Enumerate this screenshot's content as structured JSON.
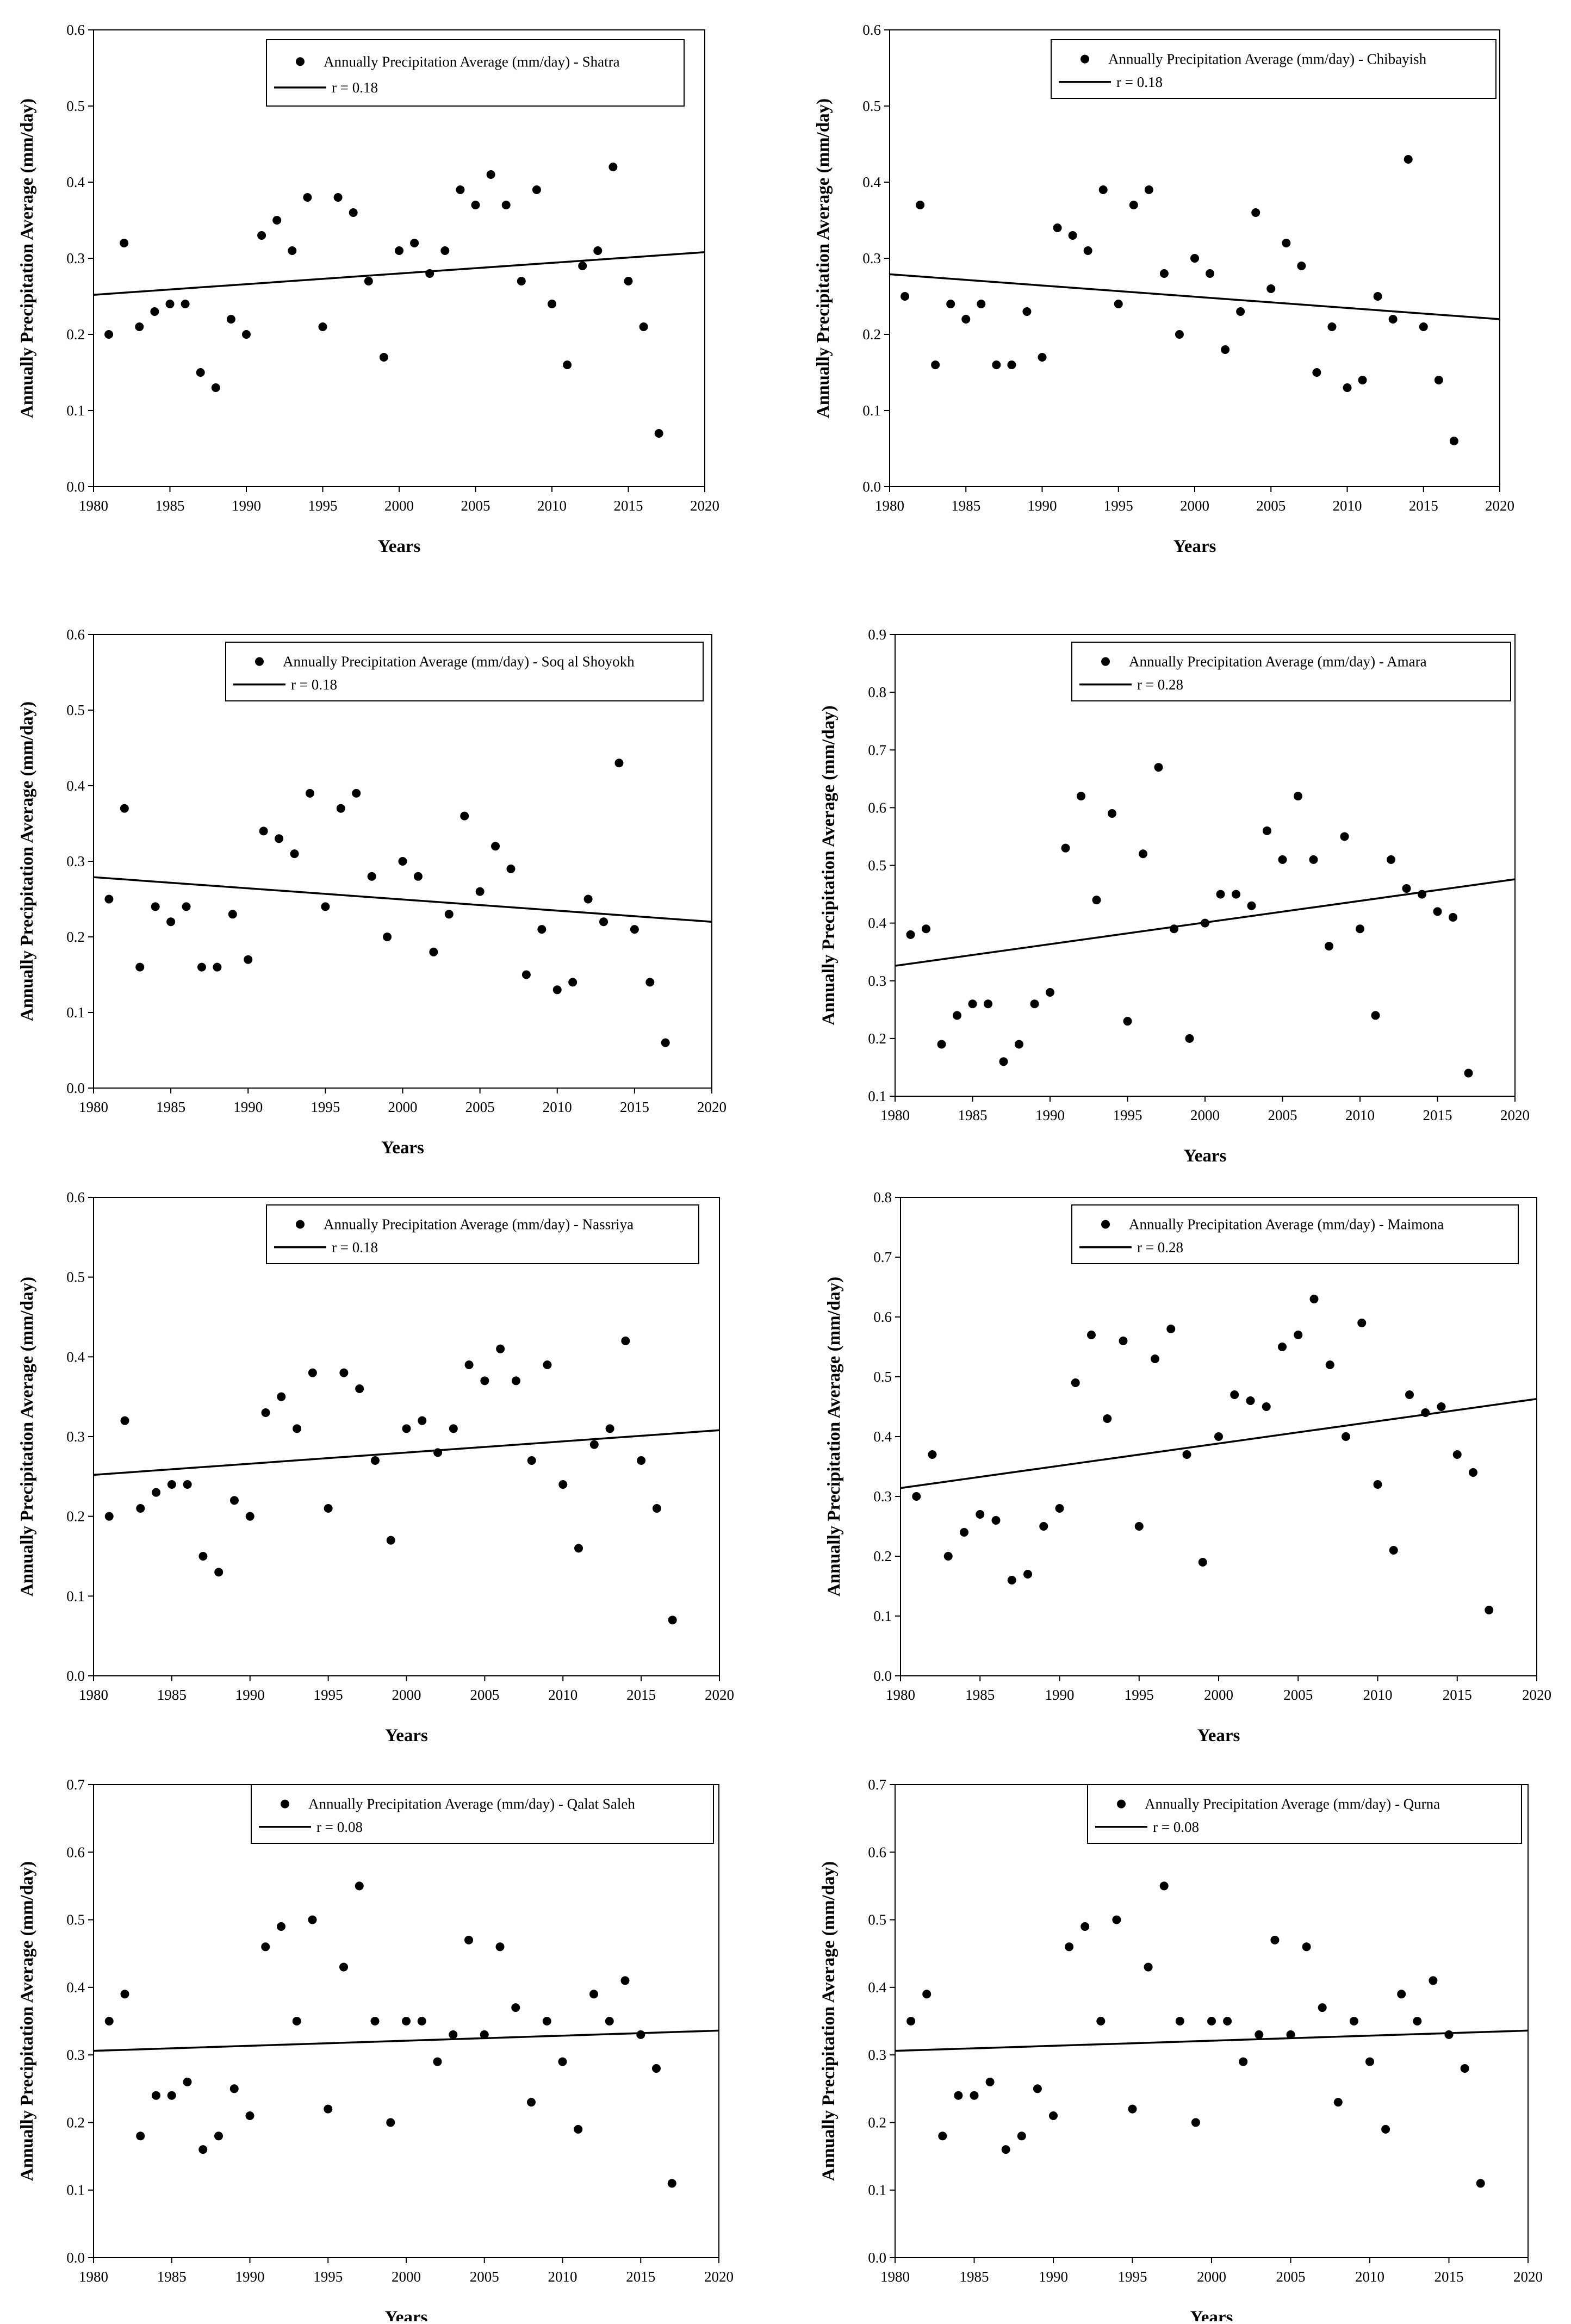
{
  "chart_data": [
    {
      "type": "scatter",
      "title": "Shatra",
      "xlabel": "Years",
      "ylabel": "Annually Precipitation Average (mm/day)",
      "xlim": [
        1980,
        2020
      ],
      "ylim": [
        0,
        0.6
      ],
      "xticks": [
        "1980",
        "1985",
        "1990",
        "1995",
        "2000",
        "2005",
        "2010",
        "2015",
        "2020"
      ],
      "yticks": [
        "0.0",
        "0.1",
        "0.2",
        "0.3",
        "0.4",
        "0.5",
        "0.6"
      ],
      "legend": [
        "Annually Precipitation Average (mm/day) - Shatra",
        "r = 0.18"
      ],
      "legend_position": "top-right",
      "x": [
        1981,
        1982,
        1983,
        1984,
        1985,
        1986,
        1987,
        1988,
        1989,
        1990,
        1991,
        1992,
        1993,
        1994,
        1995,
        1996,
        1997,
        1998,
        1999,
        2000,
        2001,
        2002,
        2003,
        2004,
        2005,
        2006,
        2007,
        2008,
        2009,
        2010,
        2011,
        2012,
        2013,
        2014,
        2015,
        2016,
        2017
      ],
      "y": [
        0.2,
        0.32,
        0.21,
        0.23,
        0.24,
        0.24,
        0.15,
        0.13,
        0.22,
        0.2,
        0.33,
        0.35,
        0.31,
        0.38,
        0.21,
        0.38,
        0.36,
        0.27,
        0.17,
        0.31,
        0.32,
        0.28,
        0.31,
        0.39,
        0.37,
        0.41,
        0.37,
        0.27,
        0.39,
        0.24,
        0.16,
        0.29,
        0.31,
        0.42,
        0.27,
        0.21,
        0.07
      ],
      "trend": {
        "x": [
          1980,
          2020
        ],
        "y": [
          0.252,
          0.308
        ]
      }
    },
    {
      "type": "scatter",
      "title": "Chibayish",
      "xlabel": "Years",
      "ylabel": "Annually Precipitation Average (mm/day)",
      "xlim": [
        1980,
        2020
      ],
      "ylim": [
        0,
        0.6
      ],
      "xticks": [
        "1980",
        "1985",
        "1990",
        "1995",
        "2000",
        "2005",
        "2010",
        "2015",
        "2020"
      ],
      "yticks": [
        "0.0",
        "0.1",
        "0.2",
        "0.3",
        "0.4",
        "0.5",
        "0.6"
      ],
      "legend": [
        "Annually Precipitation Average (mm/day) - Chibayish",
        "r = 0.18"
      ],
      "legend_position": "top-right",
      "x": [
        1981,
        1982,
        1983,
        1984,
        1985,
        1986,
        1987,
        1988,
        1989,
        1990,
        1991,
        1992,
        1993,
        1994,
        1995,
        1996,
        1997,
        1998,
        1999,
        2000,
        2001,
        2002,
        2003,
        2004,
        2005,
        2006,
        2007,
        2008,
        2009,
        2010,
        2011,
        2012,
        2013,
        2014,
        2015,
        2016,
        2017
      ],
      "y": [
        0.25,
        0.37,
        0.16,
        0.24,
        0.22,
        0.24,
        0.16,
        0.16,
        0.23,
        0.17,
        0.34,
        0.33,
        0.31,
        0.39,
        0.24,
        0.37,
        0.39,
        0.28,
        0.2,
        0.3,
        0.28,
        0.18,
        0.23,
        0.36,
        0.26,
        0.32,
        0.29,
        0.15,
        0.21,
        0.13,
        0.14,
        0.25,
        0.22,
        0.43,
        0.21,
        0.14,
        0.06
      ],
      "trend": {
        "x": [
          1980,
          2020
        ],
        "y": [
          0.279,
          0.22
        ]
      }
    },
    {
      "type": "scatter",
      "title": "Soq al Shoyokh",
      "xlabel": "Years",
      "ylabel": "Annually Precipitation Average (mm/day)",
      "xlim": [
        1980,
        2020
      ],
      "ylim": [
        0,
        0.6
      ],
      "xticks": [
        "1980",
        "1985",
        "1990",
        "1995",
        "2000",
        "2005",
        "2010",
        "2015",
        "2020"
      ],
      "yticks": [
        "0.0",
        "0.1",
        "0.2",
        "0.3",
        "0.4",
        "0.5",
        "0.6"
      ],
      "legend": [
        "Annually Precipitation Average (mm/day) - Soq al Shoyokh",
        "r = 0.18"
      ],
      "legend_position": "top-right",
      "x": [
        1981,
        1982,
        1983,
        1984,
        1985,
        1986,
        1987,
        1988,
        1989,
        1990,
        1991,
        1992,
        1993,
        1994,
        1995,
        1996,
        1997,
        1998,
        1999,
        2000,
        2001,
        2002,
        2003,
        2004,
        2005,
        2006,
        2007,
        2008,
        2009,
        2010,
        2011,
        2012,
        2013,
        2014,
        2015,
        2016,
        2017
      ],
      "y": [
        0.25,
        0.37,
        0.16,
        0.24,
        0.22,
        0.24,
        0.16,
        0.16,
        0.23,
        0.17,
        0.34,
        0.33,
        0.31,
        0.39,
        0.24,
        0.37,
        0.39,
        0.28,
        0.2,
        0.3,
        0.28,
        0.18,
        0.23,
        0.36,
        0.26,
        0.32,
        0.29,
        0.15,
        0.21,
        0.13,
        0.14,
        0.25,
        0.22,
        0.43,
        0.21,
        0.14,
        0.06
      ],
      "trend": {
        "x": [
          1980,
          2020
        ],
        "y": [
          0.279,
          0.22
        ]
      }
    },
    {
      "type": "scatter",
      "title": "Amara",
      "xlabel": "Years",
      "ylabel": "Annually Precipitation Average (mm/day)",
      "xlim": [
        1980,
        2020
      ],
      "ylim": [
        0.1,
        0.9
      ],
      "xticks": [
        "1980",
        "1985",
        "1990",
        "1995",
        "2000",
        "2005",
        "2010",
        "2015",
        "2020"
      ],
      "yticks": [
        "0.1",
        "0.2",
        "0.3",
        "0.4",
        "0.5",
        "0.6",
        "0.7",
        "0.8",
        "0.9"
      ],
      "legend": [
        "Annually Precipitation Average (mm/day) - Amara",
        "r = 0.28"
      ],
      "legend_position": "top-right",
      "x": [
        1981,
        1982,
        1983,
        1984,
        1985,
        1986,
        1987,
        1988,
        1989,
        1990,
        1991,
        1992,
        1993,
        1994,
        1995,
        1996,
        1997,
        1998,
        1999,
        2000,
        2001,
        2002,
        2003,
        2004,
        2005,
        2006,
        2007,
        2008,
        2009,
        2010,
        2011,
        2012,
        2013,
        2014,
        2015,
        2016,
        2017
      ],
      "y": [
        0.38,
        0.39,
        0.19,
        0.24,
        0.26,
        0.26,
        0.16,
        0.19,
        0.26,
        0.28,
        0.53,
        0.62,
        0.44,
        0.59,
        0.23,
        0.52,
        0.67,
        0.39,
        0.2,
        0.4,
        0.45,
        0.45,
        0.43,
        0.56,
        0.51,
        0.62,
        0.51,
        0.36,
        0.55,
        0.39,
        0.24,
        0.51,
        0.46,
        0.45,
        0.42,
        0.41,
        0.14
      ],
      "trend": {
        "x": [
          1980,
          2020
        ],
        "y": [
          0.326,
          0.476
        ]
      }
    },
    {
      "type": "scatter",
      "title": "Nassriya",
      "xlabel": "Years",
      "ylabel": "Annually Precipitation Average (mm/day)",
      "xlim": [
        1980,
        2020
      ],
      "ylim": [
        0,
        0.6
      ],
      "xticks": [
        "1980",
        "1985",
        "1990",
        "1995",
        "2000",
        "2005",
        "2010",
        "2015",
        "2020"
      ],
      "yticks": [
        "0.0",
        "0.1",
        "0.2",
        "0.3",
        "0.4",
        "0.5",
        "0.6"
      ],
      "legend": [
        "Annually Precipitation Average (mm/day) - Nassriya",
        "r = 0.18"
      ],
      "legend_position": "top-right",
      "x": [
        1981,
        1982,
        1983,
        1984,
        1985,
        1986,
        1987,
        1988,
        1989,
        1990,
        1991,
        1992,
        1993,
        1994,
        1995,
        1996,
        1997,
        1998,
        1999,
        2000,
        2001,
        2002,
        2003,
        2004,
        2005,
        2006,
        2007,
        2008,
        2009,
        2010,
        2011,
        2012,
        2013,
        2014,
        2015,
        2016,
        2017
      ],
      "y": [
        0.2,
        0.32,
        0.21,
        0.23,
        0.24,
        0.24,
        0.15,
        0.13,
        0.22,
        0.2,
        0.33,
        0.35,
        0.31,
        0.38,
        0.21,
        0.38,
        0.36,
        0.27,
        0.17,
        0.31,
        0.32,
        0.28,
        0.31,
        0.39,
        0.37,
        0.41,
        0.37,
        0.27,
        0.39,
        0.24,
        0.16,
        0.29,
        0.31,
        0.42,
        0.27,
        0.21,
        0.07
      ],
      "trend": {
        "x": [
          1980,
          2020
        ],
        "y": [
          0.252,
          0.308
        ]
      }
    },
    {
      "type": "scatter",
      "title": "Maimona",
      "xlabel": "Years",
      "ylabel": "Annually Precipitation Average (mm/day)",
      "xlim": [
        1980,
        2020
      ],
      "ylim": [
        0,
        0.8
      ],
      "xticks": [
        "1980",
        "1985",
        "1990",
        "1995",
        "2000",
        "2005",
        "2010",
        "2015",
        "2020"
      ],
      "yticks": [
        "0.0",
        "0.1",
        "0.2",
        "0.3",
        "0.4",
        "0.5",
        "0.6",
        "0.7",
        "0.8"
      ],
      "legend": [
        "Annually Precipitation Average (mm/day) - Maimona",
        "r = 0.28"
      ],
      "legend_position": "top-right",
      "x": [
        1981,
        1982,
        1983,
        1984,
        1985,
        1986,
        1987,
        1988,
        1989,
        1990,
        1991,
        1992,
        1993,
        1994,
        1995,
        1996,
        1997,
        1998,
        1999,
        2000,
        2001,
        2002,
        2003,
        2004,
        2005,
        2006,
        2007,
        2008,
        2009,
        2010,
        2011,
        2012,
        2013,
        2014,
        2015,
        2016,
        2017
      ],
      "y": [
        0.3,
        0.37,
        0.2,
        0.24,
        0.27,
        0.26,
        0.16,
        0.17,
        0.25,
        0.28,
        0.49,
        0.57,
        0.43,
        0.56,
        0.25,
        0.53,
        0.58,
        0.37,
        0.19,
        0.4,
        0.47,
        0.46,
        0.45,
        0.55,
        0.57,
        0.63,
        0.52,
        0.4,
        0.59,
        0.32,
        0.21,
        0.47,
        0.44,
        0.45,
        0.37,
        0.34,
        0.11
      ],
      "trend": {
        "x": [
          1980,
          2020
        ],
        "y": [
          0.314,
          0.463
        ]
      }
    },
    {
      "type": "scatter",
      "title": "Qalat Saleh",
      "xlabel": "Years",
      "ylabel": "Annually Precipitation Average (mm/day)",
      "xlim": [
        1980,
        2020
      ],
      "ylim": [
        0,
        0.7
      ],
      "xticks": [
        "1980",
        "1985",
        "1990",
        "1995",
        "2000",
        "2005",
        "2010",
        "2015",
        "2020"
      ],
      "yticks": [
        "0.0",
        "0.1",
        "0.2",
        "0.3",
        "0.4",
        "0.5",
        "0.6",
        "0.7"
      ],
      "legend": [
        "Annually Precipitation Average (mm/day) - Qalat Saleh",
        "r = 0.08"
      ],
      "legend_position": "top-right",
      "x": [
        1981,
        1982,
        1983,
        1984,
        1985,
        1986,
        1987,
        1988,
        1989,
        1990,
        1991,
        1992,
        1993,
        1994,
        1995,
        1996,
        1997,
        1998,
        1999,
        2000,
        2001,
        2002,
        2003,
        2004,
        2005,
        2006,
        2007,
        2008,
        2009,
        2010,
        2011,
        2012,
        2013,
        2014,
        2015,
        2016,
        2017
      ],
      "y": [
        0.35,
        0.39,
        0.18,
        0.24,
        0.24,
        0.26,
        0.16,
        0.18,
        0.25,
        0.21,
        0.46,
        0.49,
        0.35,
        0.5,
        0.22,
        0.43,
        0.55,
        0.35,
        0.2,
        0.35,
        0.35,
        0.29,
        0.33,
        0.47,
        0.33,
        0.46,
        0.37,
        0.23,
        0.35,
        0.29,
        0.19,
        0.39,
        0.35,
        0.41,
        0.33,
        0.28,
        0.11
      ],
      "trend": {
        "x": [
          1980,
          2020
        ],
        "y": [
          0.306,
          0.336
        ]
      }
    },
    {
      "type": "scatter",
      "title": "Qurna",
      "xlabel": "Years",
      "ylabel": "Annually Precipitation Average (mm/day)",
      "xlim": [
        1980,
        2020
      ],
      "ylim": [
        0,
        0.7
      ],
      "xticks": [
        "1980",
        "1985",
        "1990",
        "1995",
        "2000",
        "2005",
        "2010",
        "2015",
        "2020"
      ],
      "yticks": [
        "0.0",
        "0.1",
        "0.2",
        "0.3",
        "0.4",
        "0.5",
        "0.6",
        "0.7"
      ],
      "legend": [
        "Annually Precipitation Average (mm/day) - Qurna",
        "r = 0.08"
      ],
      "legend_position": "top-right",
      "x": [
        1981,
        1982,
        1983,
        1984,
        1985,
        1986,
        1987,
        1988,
        1989,
        1990,
        1991,
        1992,
        1993,
        1994,
        1995,
        1996,
        1997,
        1998,
        1999,
        2000,
        2001,
        2002,
        2003,
        2004,
        2005,
        2006,
        2007,
        2008,
        2009,
        2010,
        2011,
        2012,
        2013,
        2014,
        2015,
        2016,
        2017
      ],
      "y": [
        0.35,
        0.39,
        0.18,
        0.24,
        0.24,
        0.26,
        0.16,
        0.18,
        0.25,
        0.21,
        0.46,
        0.49,
        0.35,
        0.5,
        0.22,
        0.43,
        0.55,
        0.35,
        0.2,
        0.35,
        0.35,
        0.29,
        0.33,
        0.47,
        0.33,
        0.46,
        0.37,
        0.23,
        0.35,
        0.29,
        0.19,
        0.39,
        0.35,
        0.41,
        0.33,
        0.28,
        0.11
      ],
      "trend": {
        "x": [
          1980,
          2020
        ],
        "y": [
          0.306,
          0.336
        ]
      }
    }
  ]
}
